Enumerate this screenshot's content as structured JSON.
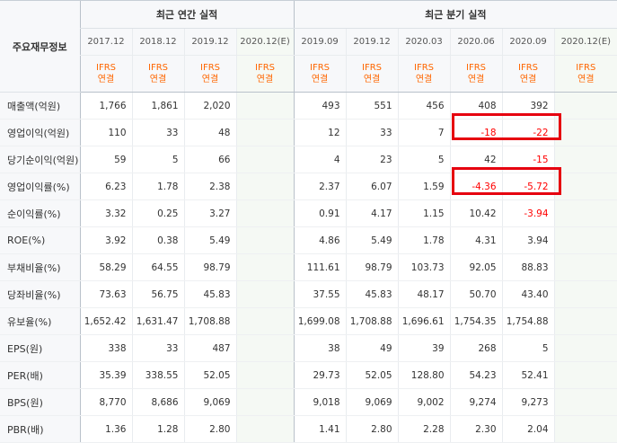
{
  "header": {
    "label": "주요재무정보",
    "annual_title": "최근 연간 실적",
    "quarter_title": "최근 분기 실적",
    "periods": [
      "2017.12",
      "2018.12",
      "2019.12",
      "2020.12(E)",
      "2019.09",
      "2019.12",
      "2020.03",
      "2020.06",
      "2020.09",
      "2020.12(E)"
    ],
    "ifrs_line1": "IFRS",
    "ifrs_line2": "연결"
  },
  "rows": [
    {
      "label": "매출액(억원)",
      "values": [
        "1,766",
        "1,861",
        "2,020",
        "",
        "493",
        "551",
        "456",
        "408",
        "392",
        ""
      ]
    },
    {
      "label": "영업이익(억원)",
      "values": [
        "110",
        "33",
        "48",
        "",
        "12",
        "33",
        "7",
        "-18",
        "-22",
        ""
      ]
    },
    {
      "label": "당기순이익(억원)",
      "values": [
        "59",
        "5",
        "66",
        "",
        "4",
        "23",
        "5",
        "42",
        "-15",
        ""
      ]
    },
    {
      "label": "영업이익률(%)",
      "values": [
        "6.23",
        "1.78",
        "2.38",
        "",
        "2.37",
        "6.07",
        "1.59",
        "-4.36",
        "-5.72",
        ""
      ]
    },
    {
      "label": "순이익률(%)",
      "values": [
        "3.32",
        "0.25",
        "3.27",
        "",
        "0.91",
        "4.17",
        "1.15",
        "10.42",
        "-3.94",
        ""
      ]
    },
    {
      "label": "ROE(%)",
      "values": [
        "3.92",
        "0.38",
        "5.49",
        "",
        "4.86",
        "5.49",
        "1.78",
        "4.31",
        "3.94",
        ""
      ]
    },
    {
      "label": "부채비율(%)",
      "values": [
        "58.29",
        "64.55",
        "98.79",
        "",
        "111.61",
        "98.79",
        "103.73",
        "92.05",
        "88.83",
        ""
      ]
    },
    {
      "label": "당좌비율(%)",
      "values": [
        "73.63",
        "56.75",
        "45.83",
        "",
        "37.55",
        "45.83",
        "48.17",
        "50.70",
        "43.40",
        ""
      ]
    },
    {
      "label": "유보율(%)",
      "values": [
        "1,652.42",
        "1,631.47",
        "1,708.88",
        "",
        "1,699.08",
        "1,708.88",
        "1,696.61",
        "1,754.35",
        "1,754.88",
        ""
      ]
    },
    {
      "label": "EPS(원)",
      "values": [
        "338",
        "33",
        "487",
        "",
        "38",
        "49",
        "39",
        "268",
        "5",
        ""
      ]
    },
    {
      "label": "PER(배)",
      "values": [
        "35.39",
        "338.55",
        "52.05",
        "",
        "29.73",
        "52.05",
        "128.80",
        "54.23",
        "52.41",
        ""
      ]
    },
    {
      "label": "BPS(원)",
      "values": [
        "8,770",
        "8,686",
        "9,069",
        "",
        "9,018",
        "9,069",
        "9,002",
        "9,274",
        "9,273",
        ""
      ]
    },
    {
      "label": "PBR(배)",
      "values": [
        "1.36",
        "1.28",
        "2.80",
        "",
        "1.41",
        "2.80",
        "2.28",
        "2.30",
        "2.04",
        ""
      ]
    }
  ],
  "colors": {
    "negative": "#ff0000",
    "ifrs": "#ff6600",
    "estimate_bg": "#f5f9f4",
    "highlight_box": "#e6000f"
  }
}
